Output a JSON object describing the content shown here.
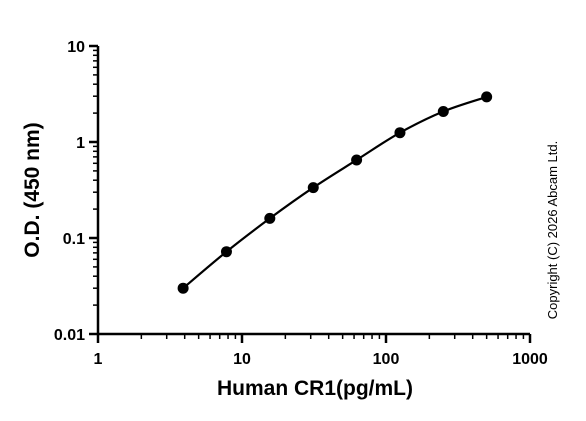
{
  "chart_data": {
    "type": "line",
    "xlabel": "Human CR1(pg/mL)",
    "ylabel": "O.D. (450 nm)",
    "xscale": "log",
    "yscale": "log",
    "xlim": [
      1,
      1000
    ],
    "ylim": [
      0.01,
      10
    ],
    "x_ticks": [
      1,
      10,
      100,
      1000
    ],
    "x_tick_labels": [
      "1",
      "10",
      "100",
      "1000"
    ],
    "y_ticks": [
      0.01,
      0.1,
      1,
      10
    ],
    "y_tick_labels": [
      "0.01",
      "0.1",
      "1",
      "10"
    ],
    "grid": false,
    "legend": "none",
    "series": [
      {
        "x": [
          3.9,
          7.8,
          15.6,
          31.25,
          62.5,
          125,
          250,
          500
        ],
        "y": [
          0.03,
          0.072,
          0.16,
          0.335,
          0.65,
          1.25,
          2.08,
          2.95
        ],
        "marker": "circle",
        "fit_line": "smooth"
      }
    ],
    "annotations": [
      "Copyright (C) 2026 Abcam Ltd."
    ],
    "colors": {
      "line": "#000000",
      "marker": "#000000",
      "axis": "#000000"
    }
  }
}
